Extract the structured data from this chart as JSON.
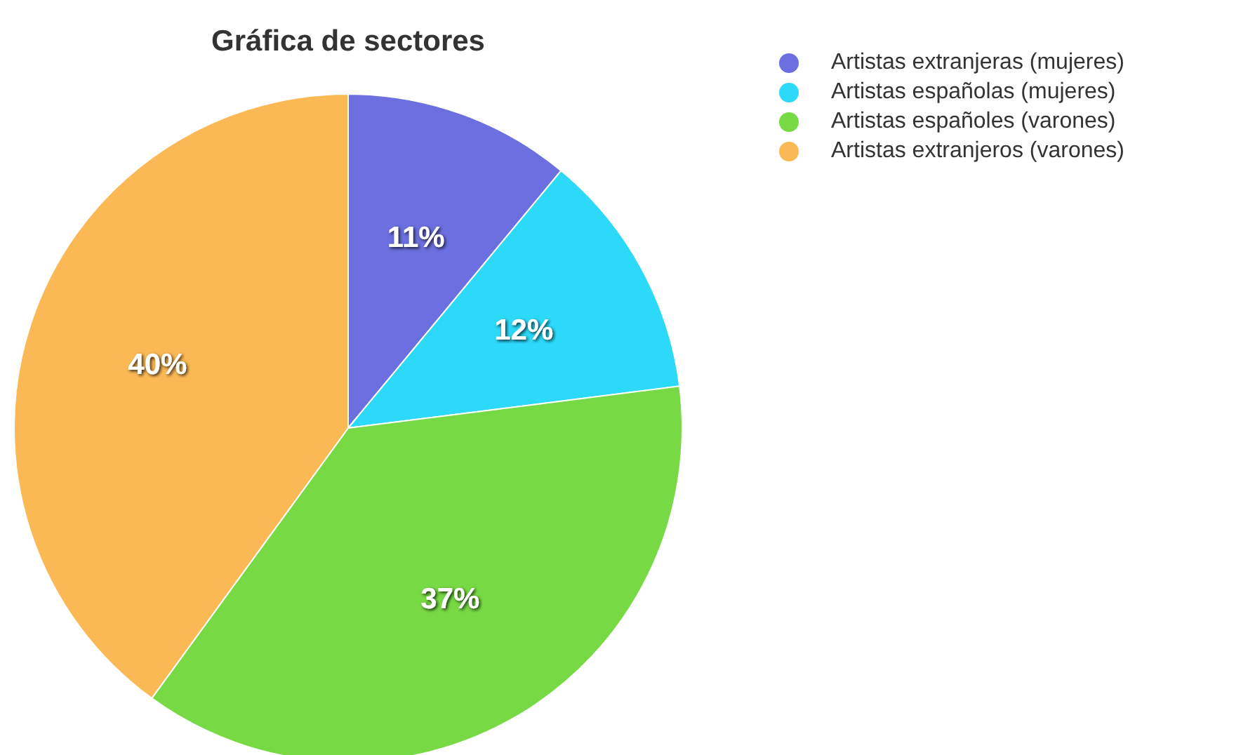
{
  "chart_data": {
    "type": "pie",
    "title": "Gráfica de sectores",
    "categories": [
      "Artistas extranjeras (mujeres)",
      "Artistas españolas (mujeres)",
      "Artistas españoles (varones)",
      "Artistas extranjeros (varones)"
    ],
    "values": [
      11,
      12,
      37,
      40
    ],
    "colors": [
      "#6b6fdf",
      "#2cd9f9",
      "#77d944",
      "#fbb955"
    ],
    "value_labels": [
      "11%",
      "12%",
      "37%",
      "40%"
    ],
    "legend": "top right"
  }
}
